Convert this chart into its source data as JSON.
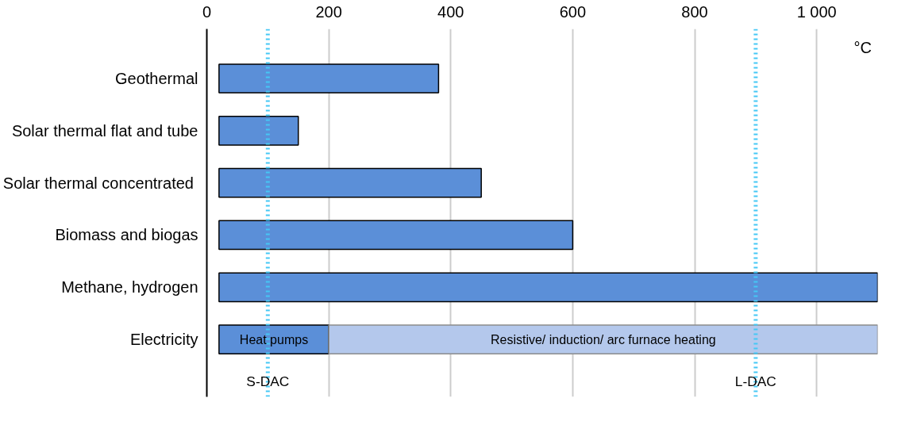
{
  "chart_data": {
    "type": "bar",
    "orientation": "horizontal",
    "xlabel": "°C",
    "categories": [
      "Geothermal",
      "Solar thermal flat and tube",
      "Solar thermal concentrated ",
      "Biomass and biogas",
      "Methane, hydrogen",
      "Electricity"
    ],
    "series": [
      {
        "color": "#5b8fd8",
        "base": [
          20,
          20,
          20,
          20,
          20,
          20
        ],
        "values": [
          360,
          130,
          430,
          580,
          1080,
          180
        ]
      },
      {
        "color": "#b4c8ec",
        "base": [
          null,
          null,
          null,
          null,
          null,
          200
        ],
        "values": [
          null,
          null,
          null,
          null,
          null,
          900
        ]
      }
    ],
    "xlim": [
      0,
      1100
    ],
    "xticks": [
      0,
      200,
      400,
      600,
      800,
      {
        "value": 1000,
        "label": "1 000"
      }
    ],
    "grid": "x",
    "ref_lines": [
      {
        "axis": "x",
        "value": 100,
        "label": "S-DAC",
        "color": "#45c8f5",
        "line_style": "dotted"
      },
      {
        "axis": "x",
        "value": 900,
        "label": "L-DAC",
        "color": "#45c8f5",
        "line_style": "dotted"
      }
    ],
    "annotations": [
      "Heat pumps",
      "Resistive/ induction/ arc furnace heating"
    ]
  }
}
